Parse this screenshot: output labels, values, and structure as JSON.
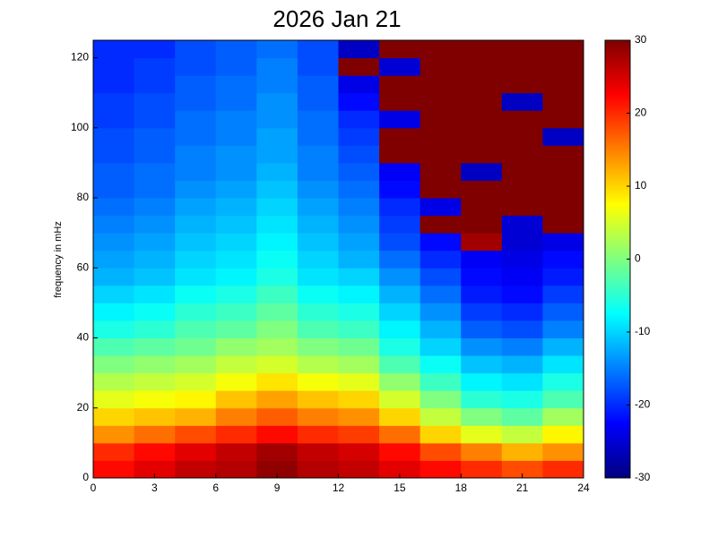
{
  "chart_data": {
    "type": "heatmap",
    "title": "2026 Jan 21",
    "ylabel": "frequency in mHz",
    "colormap": "jet",
    "xbins": [
      0,
      2,
      4,
      6,
      8,
      10,
      12,
      14,
      16,
      18,
      20,
      22,
      24
    ],
    "ybins": [
      0,
      5,
      10,
      15,
      20,
      25,
      30,
      35,
      40,
      45,
      50,
      55,
      60,
      65,
      70,
      75,
      80,
      85,
      90,
      95,
      100,
      105,
      110,
      115,
      120,
      125
    ],
    "values": [
      [
        22,
        24,
        26,
        27,
        29,
        27,
        26,
        24,
        22,
        20,
        18,
        20
      ],
      [
        20,
        22,
        24,
        26,
        28,
        26,
        25,
        22,
        18,
        15,
        12,
        14
      ],
      [
        14,
        16,
        18,
        20,
        22,
        20,
        19,
        16,
        10,
        6,
        4,
        8
      ],
      [
        10,
        11,
        12,
        15,
        17,
        15,
        14,
        10,
        4,
        0,
        -2,
        2
      ],
      [
        6,
        7,
        8,
        11,
        13,
        11,
        10,
        5,
        0,
        -5,
        -6,
        -3
      ],
      [
        3,
        4,
        5,
        7,
        9,
        7,
        6,
        1,
        -4,
        -8,
        -9,
        -6
      ],
      [
        0,
        1,
        2,
        4,
        5,
        3,
        2,
        -3,
        -7,
        -11,
        -12,
        -9
      ],
      [
        -3,
        -2,
        -1,
        1,
        2,
        0,
        -1,
        -6,
        -10,
        -14,
        -15,
        -12
      ],
      [
        -6,
        -5,
        -3,
        -2,
        0,
        -3,
        -4,
        -8,
        -12,
        -17,
        -18,
        -15
      ],
      [
        -8,
        -7,
        -5,
        -4,
        -2,
        -5,
        -6,
        -10,
        -14,
        -19,
        -20,
        -17
      ],
      [
        -10,
        -9,
        -7,
        -6,
        -4,
        -7,
        -8,
        -12,
        -16,
        -21,
        -22,
        -19
      ],
      [
        -12,
        -11,
        -9,
        -8,
        -6,
        -9,
        -10,
        -14,
        -18,
        -22,
        -23,
        -21
      ],
      [
        -13,
        -12,
        -10,
        -9,
        -7,
        -10,
        -12,
        -16,
        -20,
        -23,
        -24,
        -22
      ],
      [
        -14,
        -13,
        -11,
        -10,
        -8,
        -11,
        -13,
        -18,
        -22,
        28,
        -25,
        -24
      ],
      [
        -15,
        -14,
        -12,
        -11,
        -9,
        -12,
        -14,
        -19,
        30,
        30,
        -25,
        30
      ],
      [
        -16,
        -15,
        -13,
        -12,
        -10,
        -13,
        -15,
        -20,
        -24,
        30,
        30,
        30
      ],
      [
        -17,
        -16,
        -14,
        -13,
        -11,
        -14,
        -16,
        -22,
        30,
        30,
        30,
        30
      ],
      [
        -17,
        -16,
        -15,
        -14,
        -12,
        -15,
        -17,
        -23,
        30,
        -26,
        30,
        30
      ],
      [
        -18,
        -17,
        -15,
        -14,
        -13,
        -15,
        -18,
        30,
        30,
        30,
        30,
        30
      ],
      [
        -18,
        -17,
        -16,
        -15,
        -13,
        -16,
        -19,
        30,
        30,
        30,
        30,
        -26
      ],
      [
        -19,
        -18,
        -16,
        -15,
        -14,
        -16,
        -20,
        -24,
        30,
        30,
        30,
        30
      ],
      [
        -19,
        -18,
        -17,
        -16,
        -14,
        -17,
        -22,
        30,
        30,
        30,
        -26,
        30
      ],
      [
        -20,
        -19,
        -17,
        -16,
        -15,
        -17,
        -24,
        30,
        30,
        30,
        30,
        30
      ],
      [
        -20,
        -19,
        -18,
        -17,
        -15,
        -18,
        30,
        -25,
        30,
        30,
        30,
        30
      ],
      [
        -20,
        -20,
        -18,
        -17,
        -16,
        -18,
        -26,
        30,
        30,
        30,
        30,
        30
      ]
    ],
    "xlim": [
      0,
      24
    ],
    "xticks": [
      0,
      3,
      6,
      9,
      12,
      15,
      18,
      21,
      24
    ],
    "ylim": [
      0,
      125
    ],
    "yticks": [
      0,
      20,
      40,
      60,
      80,
      100,
      120
    ],
    "clim": [
      -30,
      30
    ],
    "cticks": [
      -30,
      -20,
      -10,
      0,
      10,
      20,
      30
    ]
  }
}
